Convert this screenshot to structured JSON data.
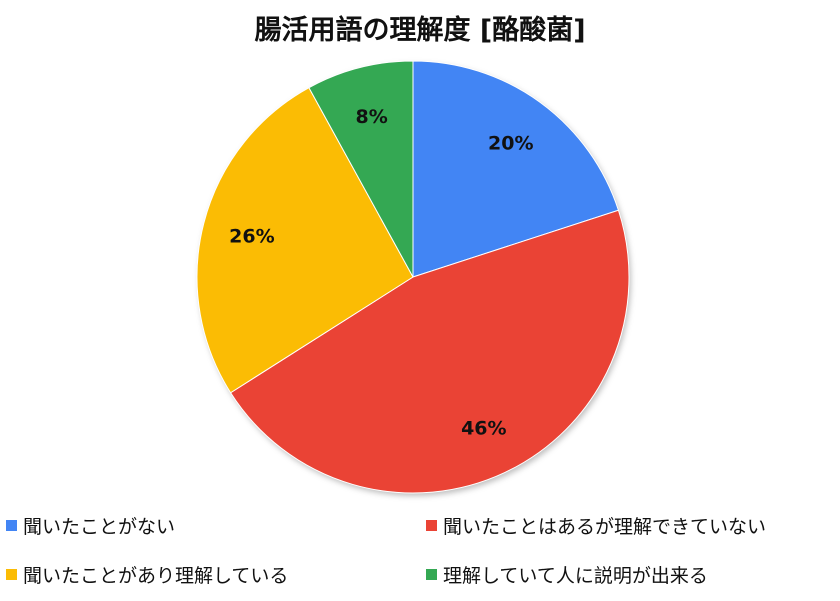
{
  "chart_data": {
    "type": "pie",
    "title": "腸活用語の理解度 [酪酸菌]",
    "slices": [
      {
        "label": "聞いたことがない",
        "value": 20,
        "display": "20%",
        "color": "#4285F4"
      },
      {
        "label": "聞いたことはあるが理解できていない",
        "value": 46,
        "display": "46%",
        "color": "#EA4335"
      },
      {
        "label": "聞いたことがあり理解している",
        "value": 26,
        "display": "26%",
        "color": "#FBBC04"
      },
      {
        "label": "理解していて人に説明が出来る",
        "value": 8,
        "display": "8%",
        "color": "#34A853"
      }
    ],
    "start_angle": "top, clockwise",
    "legend_position": "bottom"
  }
}
